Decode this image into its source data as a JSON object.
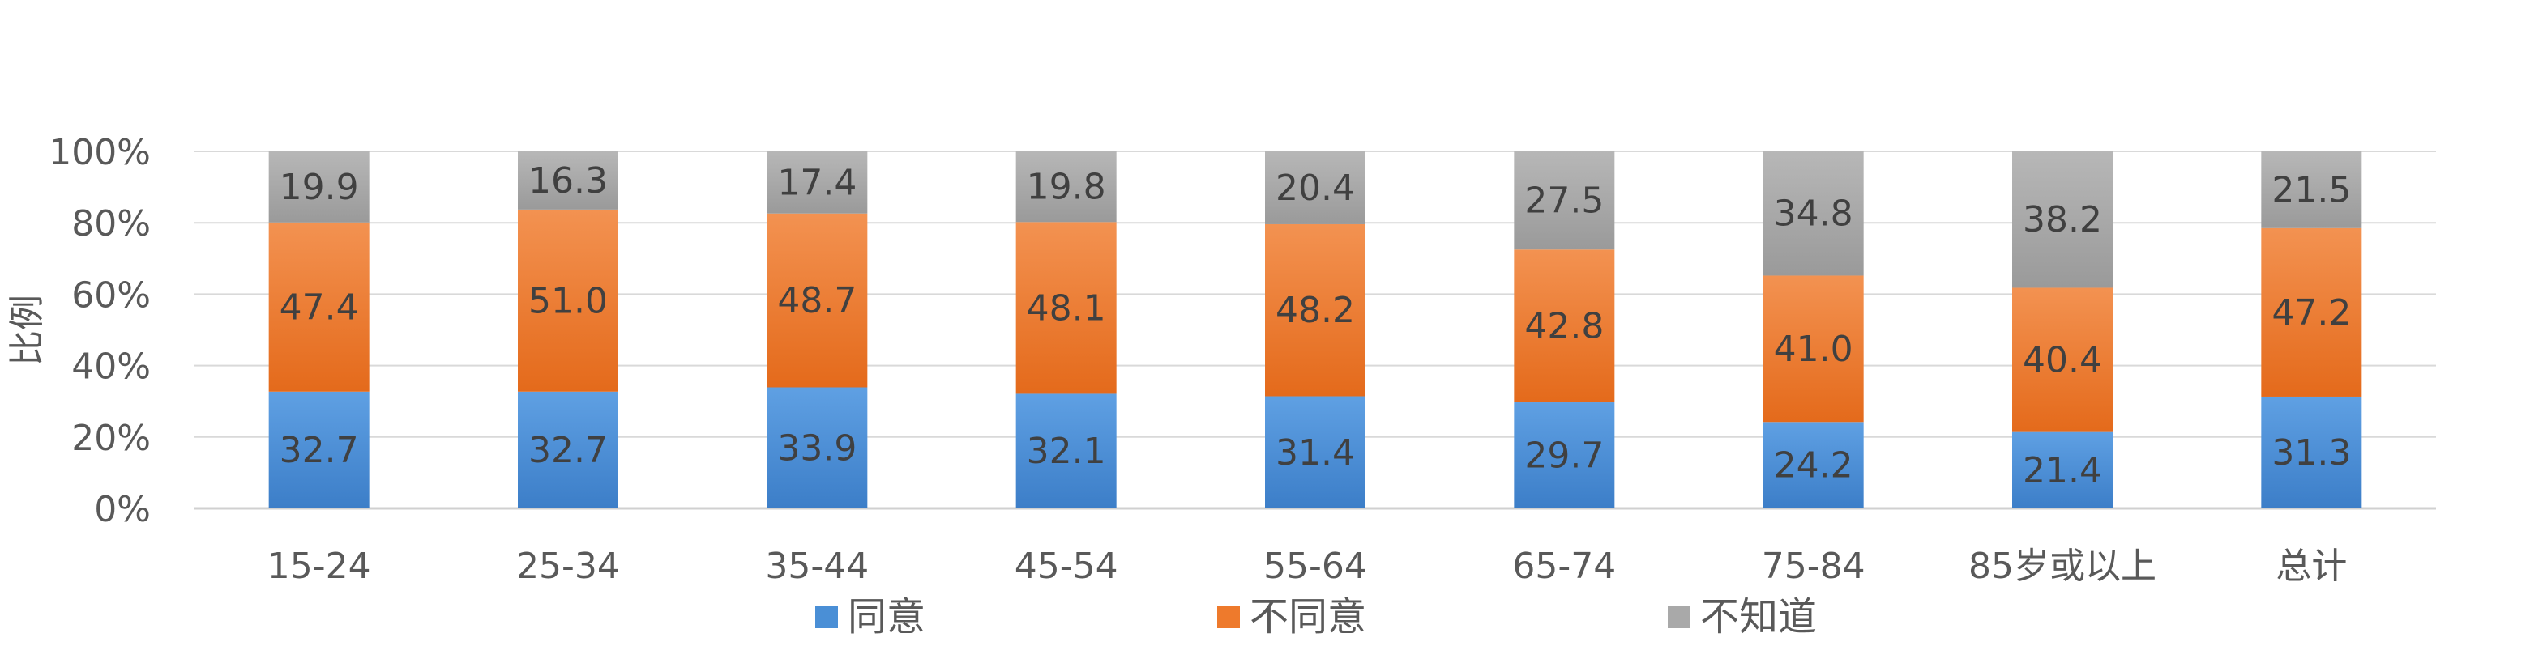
{
  "chart_data": {
    "type": "bar",
    "stacked": true,
    "ylabel": "比例",
    "ylim": [
      0,
      100
    ],
    "yticks": [
      "0%",
      "20%",
      "40%",
      "60%",
      "80%",
      "100%"
    ],
    "grid": true,
    "legend_position": "bottom",
    "categories": [
      "15-24",
      "25-34",
      "35-44",
      "45-54",
      "55-64",
      "65-74",
      "75-84",
      "85岁或以上",
      "总计"
    ],
    "series": [
      {
        "name": "同意",
        "color": "#4A8FD6",
        "values": [
          32.7,
          32.7,
          33.9,
          32.1,
          31.4,
          29.7,
          24.2,
          21.4,
          31.3
        ]
      },
      {
        "name": "不同意",
        "color": "#EE7A2C",
        "values": [
          47.4,
          51.0,
          48.7,
          48.1,
          48.2,
          42.8,
          41.0,
          40.4,
          47.2
        ]
      },
      {
        "name": "不知道",
        "color": "#A9A9A9",
        "values": [
          19.9,
          16.3,
          17.4,
          19.8,
          20.4,
          27.5,
          34.8,
          38.2,
          21.5
        ]
      }
    ]
  }
}
